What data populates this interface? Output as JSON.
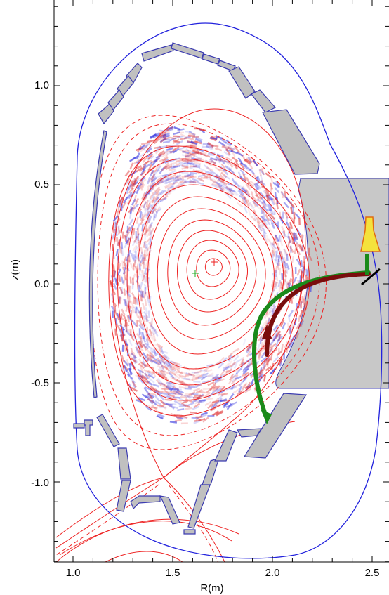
{
  "axes": {
    "xlabel": "R(m)",
    "ylabel": "z(m)",
    "xlim": [
      0.9,
      2.55
    ],
    "ylim": [
      -1.4,
      1.4
    ],
    "xticks": [
      "1.0",
      "1.5",
      "2.0",
      "2.5"
    ],
    "yticks": [
      "1.0",
      "0.5",
      "0.0",
      "-0.5",
      "-1.0"
    ]
  },
  "colors": {
    "wall": "#2222dd",
    "flux": "#ee2222",
    "tile_fill": "#c0c0c0",
    "tile_stroke": "#3b3bb0",
    "port": "#c8c8c8",
    "antenna_fill": "#f4e23c",
    "antenna_stroke": "#e06a10",
    "beam_green": "#1a8a1a",
    "beam_red": "#7a0d0d",
    "mirror": "#000000",
    "axis_mark": "#ee2222",
    "center_mark": "#22aa22"
  },
  "markers": [
    {
      "name": "magnetic-axis",
      "R": 1.7,
      "z": 0.11,
      "symbol": "+"
    },
    {
      "name": "geometric-center",
      "R": 1.6,
      "z": 0.05,
      "symbol": "+"
    }
  ]
}
